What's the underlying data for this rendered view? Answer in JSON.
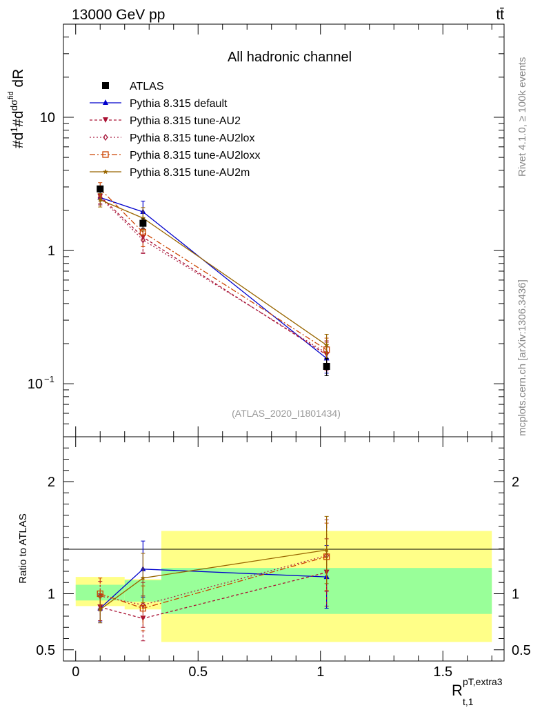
{
  "header": {
    "energy": "13000 GeV pp",
    "process": "tt̄"
  },
  "side_labels": {
    "rivet": "Rivet 4.1.0, ≥ 100k events",
    "mcplots": "mcplots.cern.ch [arXiv:1306.3436]"
  },
  "ylabel_main": "#d¹⁄σ #d dσᶠⁱᵈ / dR",
  "chart_data": {
    "type": "line",
    "title": "All hadronic channel",
    "analysis_id": "(ATLAS_2020_I1801434)",
    "xlabel_main": "R",
    "xlabel_sub": "t,1",
    "xlabel_sup": "pT,extra3",
    "ylabel_ratio": "Ratio to ATLAS",
    "yscale": "log",
    "xlim": [
      -0.05,
      1.75
    ],
    "ylim": [
      0.04,
      50
    ],
    "ratio_ylim": [
      0.4,
      2.4
    ],
    "xticks": [
      {
        "v": 0,
        "label": "0"
      },
      {
        "v": 0.5,
        "label": "0.5"
      },
      {
        "v": 1,
        "label": "1"
      },
      {
        "v": 1.5,
        "label": "1.5"
      }
    ],
    "yticks": [
      {
        "v": 0.1,
        "label": "10",
        "sup": "−1"
      },
      {
        "v": 1,
        "label": "1",
        "sup": ""
      },
      {
        "v": 10,
        "label": "10",
        "sup": ""
      }
    ],
    "ratio_yticks": [
      {
        "v": 0.5,
        "label": "0.5"
      },
      {
        "v": 1,
        "label": "1"
      },
      {
        "v": 2,
        "label": "2"
      }
    ],
    "bins": [
      {
        "xlo": 0.0,
        "xhi": 0.2
      },
      {
        "xlo": 0.2,
        "xhi": 0.35
      },
      {
        "xlo": 0.35,
        "xhi": 1.7
      }
    ],
    "x": [
      0.1,
      0.275,
      1.025
    ],
    "band_inner": [
      [
        0.94,
        1.08
      ],
      [
        0.93,
        1.12
      ],
      [
        0.82,
        1.23
      ]
    ],
    "band_outer": [
      [
        0.89,
        1.15
      ],
      [
        0.86,
        1.13
      ],
      [
        0.57,
        1.56
      ]
    ],
    "series": [
      {
        "name": "ATLAS",
        "color": "#000000",
        "dash": "",
        "marker": "square-filled",
        "values": [
          2.9,
          1.6,
          0.135
        ],
        "err": [
          0.15,
          0.13,
          0.02
        ]
      },
      {
        "name": "Pythia 8.315 default",
        "color": "#0000cc",
        "dash": "",
        "marker": "triangle-up",
        "values": [
          2.5,
          1.95,
          0.155
        ],
        "err": [
          0.3,
          0.4,
          0.035
        ],
        "ratio": [
          0.87,
          1.22,
          1.15
        ],
        "ratio_err": [
          0.12,
          0.25,
          0.28
        ]
      },
      {
        "name": "Pythia 8.315 tune-AU2",
        "color": "#aa1133",
        "dash": "4,3",
        "marker": "triangle-down",
        "values": [
          2.55,
          1.26,
          0.165
        ],
        "err": [
          0.3,
          0.3,
          0.04
        ],
        "ratio": [
          0.88,
          0.78,
          1.19
        ],
        "ratio_err": [
          0.12,
          0.2,
          0.3
        ]
      },
      {
        "name": "Pythia 8.315 tune-AU2lox",
        "color": "#aa2244",
        "dash": "2,3",
        "marker": "diamond-open",
        "values": [
          2.5,
          1.2,
          0.17
        ],
        "err": [
          0.3,
          0.25,
          0.04
        ],
        "ratio": [
          0.98,
          0.9,
          1.34
        ],
        "ratio_err": [
          0.13,
          0.2,
          0.32
        ]
      },
      {
        "name": "Pythia 8.315 tune-AU2loxx",
        "color": "#cc4400",
        "dash": "8,3,2,3",
        "marker": "square-open",
        "values": [
          2.9,
          1.37,
          0.18
        ],
        "err": [
          0.33,
          0.3,
          0.04
        ],
        "ratio": [
          1.0,
          0.87,
          1.33
        ],
        "ratio_err": [
          0.14,
          0.2,
          0.3
        ]
      },
      {
        "name": "Pythia 8.315 tune-AU2m",
        "color": "#996600",
        "dash": "",
        "marker": "star",
        "values": [
          2.4,
          1.75,
          0.195
        ],
        "err": [
          0.28,
          0.35,
          0.04
        ],
        "ratio": [
          0.86,
          1.14,
          1.39
        ],
        "ratio_err": [
          0.12,
          0.22,
          0.3
        ]
      }
    ]
  }
}
